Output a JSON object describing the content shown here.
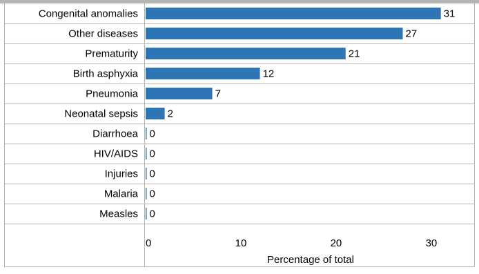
{
  "chart_data": {
    "type": "bar",
    "orientation": "horizontal",
    "categories": [
      "Congenital anomalies",
      "Other diseases",
      "Prematurity",
      "Birth asphyxia",
      "Pneumonia",
      "Neonatal sepsis",
      "Diarrhoea",
      "HIV/AIDS",
      "Injuries",
      "Malaria",
      "Measles"
    ],
    "values": [
      31,
      27,
      21,
      12,
      7,
      2,
      0,
      0,
      0,
      0,
      0
    ],
    "xlabel": "Percentage of total",
    "ylabel": "",
    "xlim": [
      0,
      34.5
    ],
    "xticks": [
      0,
      10,
      20,
      30
    ],
    "grid": false,
    "bar_color": "#2e75b6"
  }
}
